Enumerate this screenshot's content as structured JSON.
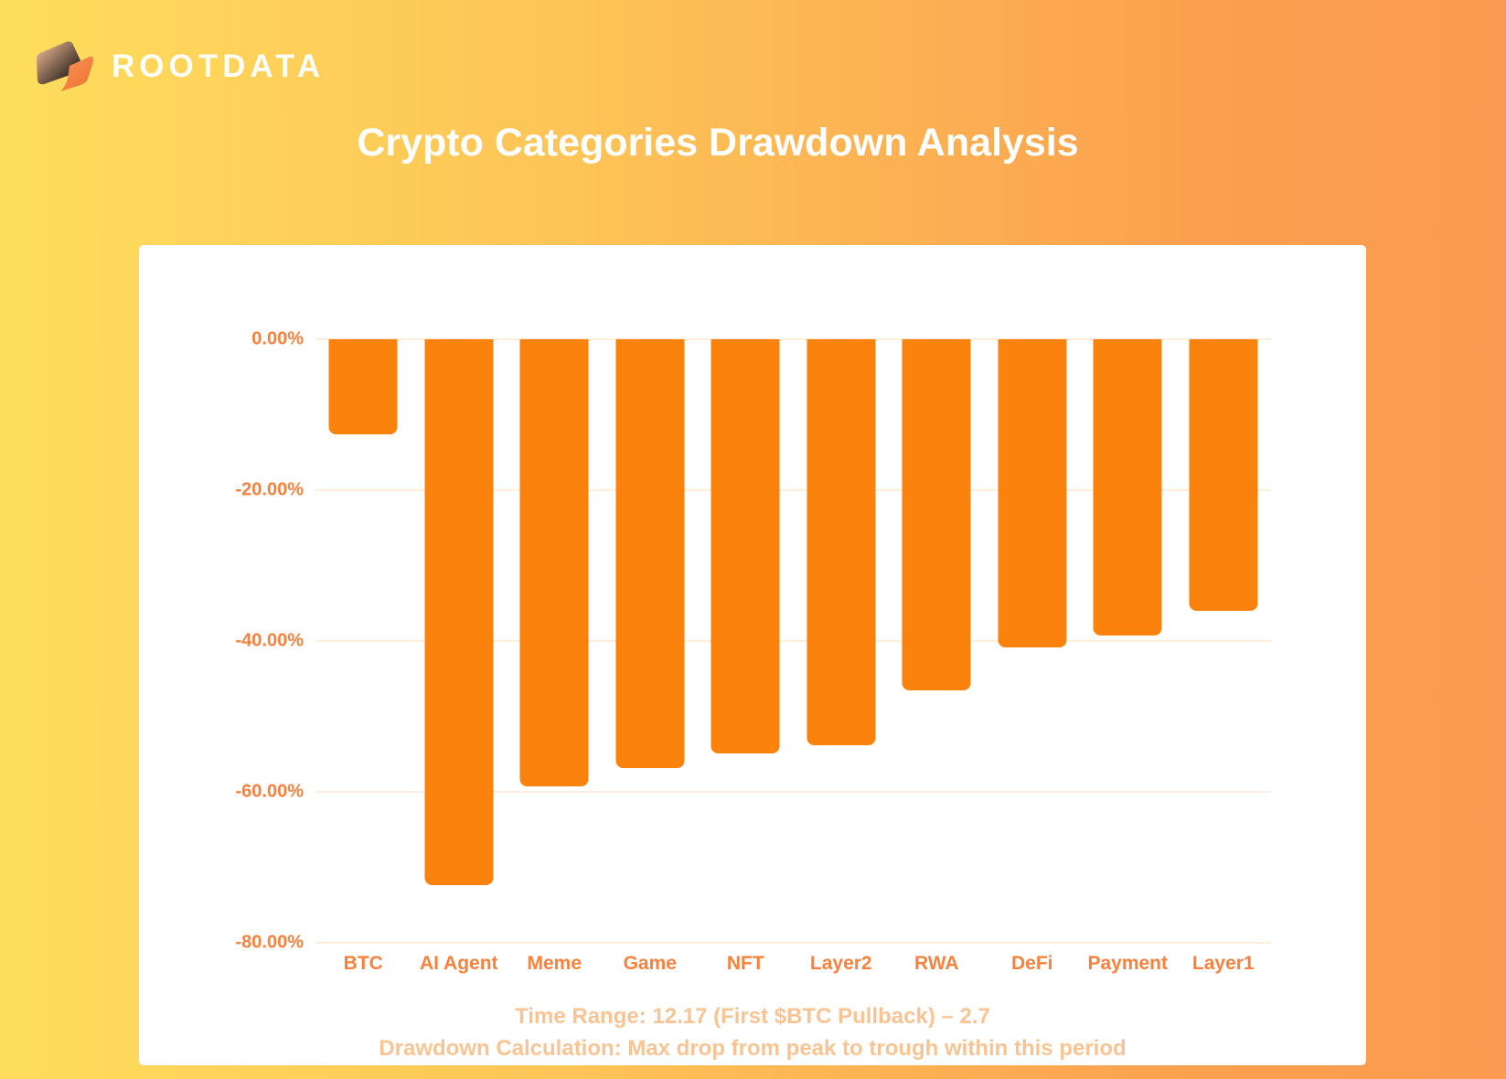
{
  "brand": {
    "logo_text": "ROOTDATA",
    "logo_icon": "book-pages-icon"
  },
  "title": "Crypto Categories Drawdown Analysis",
  "chart_data": {
    "type": "bar",
    "title": "Crypto Categories Drawdown Analysis",
    "categories": [
      "BTC",
      "AI Agent",
      "Meme",
      "Game",
      "NFT",
      "Layer2",
      "RWA",
      "DeFi",
      "Payment",
      "Layer1"
    ],
    "values": [
      -12.6,
      -72.4,
      -59.3,
      -56.9,
      -54.9,
      -53.8,
      -46.5,
      -40.9,
      -39.3,
      -36.0
    ],
    "value_unit": "%",
    "xlabel": "",
    "ylabel": "",
    "ylim": [
      -80,
      0
    ],
    "yticks": [
      "0.00%",
      "-20.00%",
      "-40.00%",
      "-60.00%",
      "-80.00%"
    ],
    "ytick_values": [
      0,
      -20,
      -40,
      -60,
      -80
    ],
    "grid": true,
    "legend": false,
    "bar_color": "#fb820c"
  },
  "footer": {
    "line1": "Time Range: 12.17 (First $BTC Pullback) – 2.7",
    "line2": "Drawdown Calculation: Max drop from peak to trough within this period"
  },
  "colors": {
    "background_left": "#fedd5c",
    "background_right": "#fb9a50",
    "card": "#ffffff",
    "bar": "#fb820c",
    "axis_text": "#f9813c",
    "category_text": "#f8823d",
    "footer_text": "#f9c493",
    "gridline": "#fdeedd",
    "title_text": "#ffffff"
  }
}
